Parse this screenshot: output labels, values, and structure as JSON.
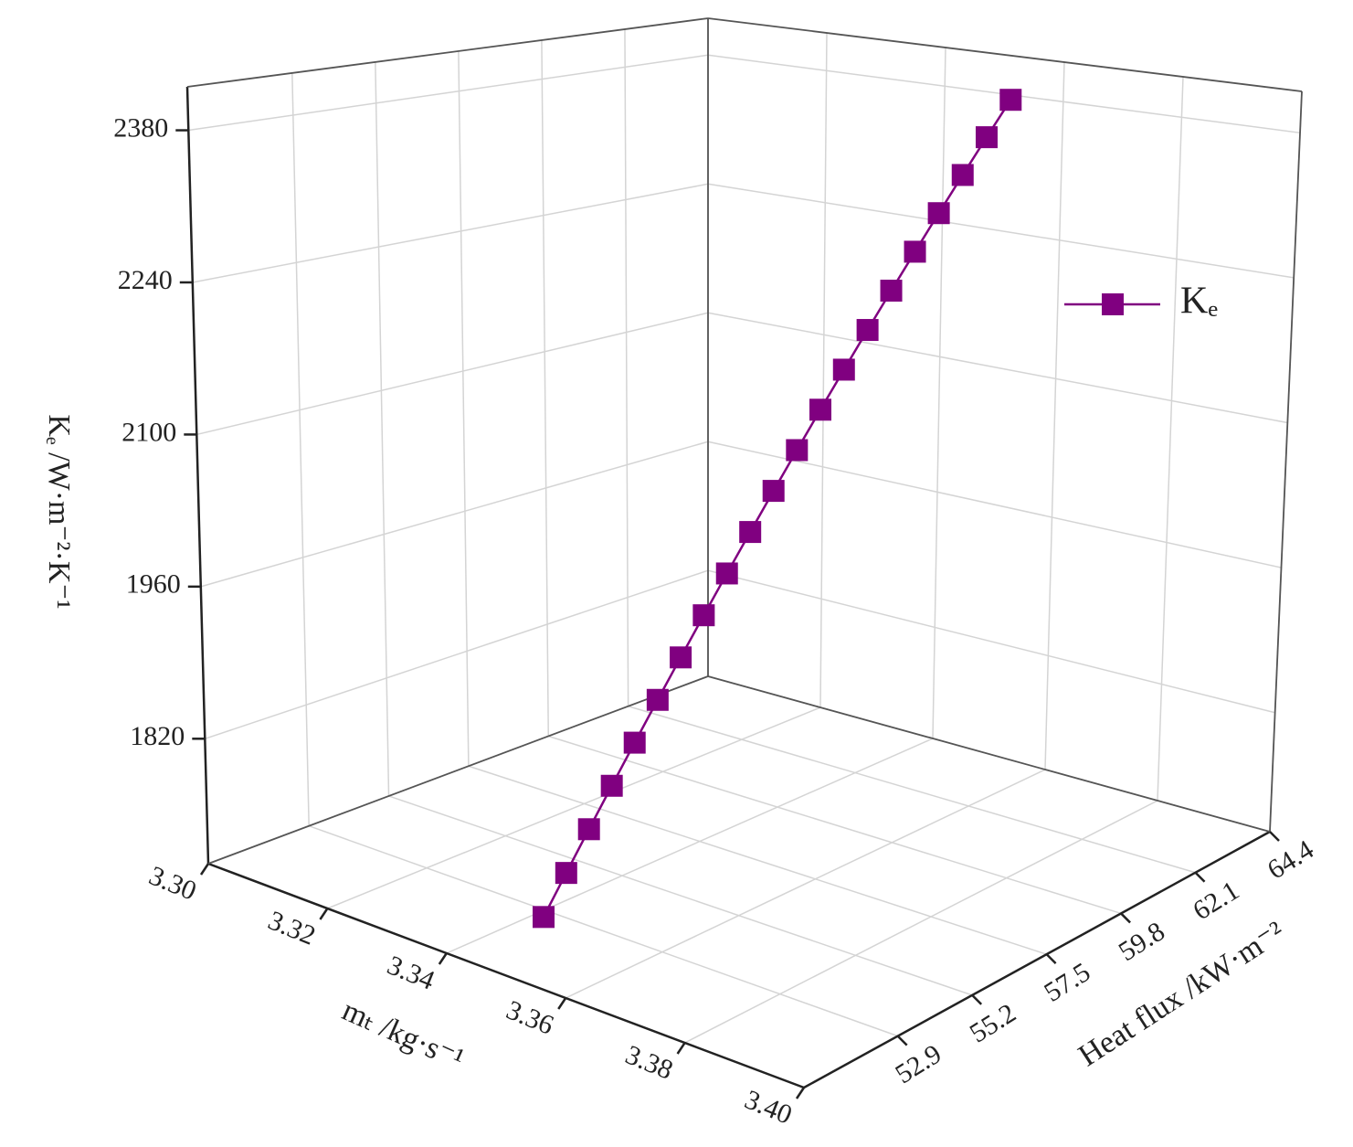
{
  "chart_data": {
    "type": "line3d",
    "x_label": "mₜ /kg·s⁻¹",
    "y_label": "Heat flux /kW·m⁻²",
    "z_label": "Kₑ /W·m⁻²·K⁻¹",
    "xlim": [
      3.3,
      3.4
    ],
    "xticks": [
      {
        "value": 3.3,
        "label": "3.30"
      },
      3.32,
      3.34,
      3.36,
      3.38,
      {
        "value": 3.4,
        "label": "3.40"
      }
    ],
    "ylim": [
      50.0,
      64.4
    ],
    "yticks": [
      52.9,
      55.2,
      57.5,
      59.8,
      62.1,
      64.4
    ],
    "zlim": [
      1705,
      2420
    ],
    "zticks": [
      1820,
      1960,
      2100,
      2240,
      2380
    ],
    "grid": true,
    "legend": "right",
    "series": [
      {
        "name": "Kₑ",
        "color": "#800080",
        "x": [
          3.345,
          3.346,
          3.347,
          3.348,
          3.349,
          3.35,
          3.351,
          3.352,
          3.353,
          3.354,
          3.355,
          3.356,
          3.357,
          3.358,
          3.359,
          3.36,
          3.361,
          3.362,
          3.363,
          3.364,
          3.365
        ],
        "y": [
          52.0,
          52.5,
          53.0,
          53.5,
          54.0,
          54.5,
          55.0,
          55.5,
          56.0,
          56.5,
          57.0,
          57.5,
          58.0,
          58.5,
          59.0,
          59.5,
          60.0,
          60.5,
          61.0,
          61.5,
          62.0
        ],
        "z": [
          1720,
          1754,
          1788,
          1822,
          1856,
          1890,
          1924,
          1958,
          1992,
          2026,
          2060,
          2094,
          2128,
          2162,
          2196,
          2230,
          2264,
          2298,
          2332,
          2366,
          2400
        ]
      }
    ]
  }
}
